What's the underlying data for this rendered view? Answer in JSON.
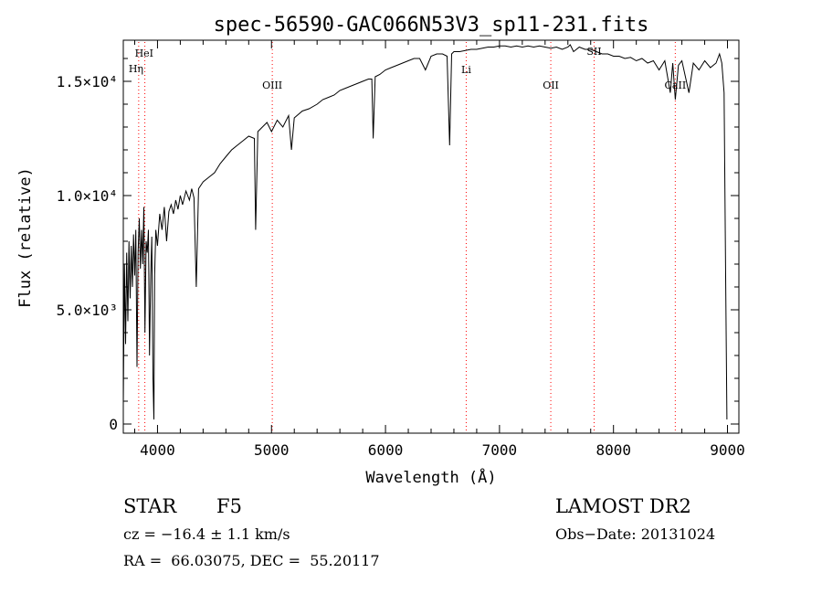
{
  "chart_data": {
    "type": "line",
    "title": "spec-56590-GAC066N53V3_sp11-231.fits",
    "xlabel": "Wavelength (Å)",
    "ylabel": "Flux (relative)",
    "xlim": [
      3700,
      9100
    ],
    "ylim": [
      -400,
      16800
    ],
    "xticks": [
      {
        "value": 4000,
        "label": "4000"
      },
      {
        "value": 5000,
        "label": "5000"
      },
      {
        "value": 6000,
        "label": "6000"
      },
      {
        "value": 7000,
        "label": "7000"
      },
      {
        "value": 8000,
        "label": "8000"
      },
      {
        "value": 9000,
        "label": "9000"
      }
    ],
    "yticks": [
      {
        "value": 0,
        "label": "0"
      },
      {
        "value": 5000,
        "label": "5.0×10³"
      },
      {
        "value": 10000,
        "label": "1.0×10⁴"
      },
      {
        "value": 15000,
        "label": "1.5×10⁴"
      }
    ],
    "grid": false,
    "line_color": "#000000",
    "marker_color": "#ff0000",
    "spectral_lines": [
      {
        "name": "HeI",
        "wavelength": 3889
      },
      {
        "name": "Hη",
        "wavelength": 3835
      },
      {
        "name": "OIII",
        "wavelength": 5007
      },
      {
        "name": "Li",
        "wavelength": 6708
      },
      {
        "name": "OII",
        "wavelength": 7450
      },
      {
        "name": "SII",
        "wavelength": 7830
      },
      {
        "name": "CaII",
        "wavelength": 8542
      }
    ],
    "series": [
      {
        "values": [
          [
            3700,
            800
          ],
          [
            3710,
            7000
          ],
          [
            3720,
            3500
          ],
          [
            3730,
            7500
          ],
          [
            3740,
            4500
          ],
          [
            3750,
            8000
          ],
          [
            3760,
            5500
          ],
          [
            3770,
            7800
          ],
          [
            3780,
            6000
          ],
          [
            3790,
            8300
          ],
          [
            3800,
            6500
          ],
          [
            3810,
            8500
          ],
          [
            3820,
            2500
          ],
          [
            3830,
            7500
          ],
          [
            3840,
            9000
          ],
          [
            3850,
            6800
          ],
          [
            3860,
            8500
          ],
          [
            3870,
            7000
          ],
          [
            3880,
            9500
          ],
          [
            3890,
            4000
          ],
          [
            3900,
            8000
          ],
          [
            3910,
            7500
          ],
          [
            3920,
            8500
          ],
          [
            3930,
            3000
          ],
          [
            3940,
            6500
          ],
          [
            3950,
            8200
          ],
          [
            3960,
            2000
          ],
          [
            3968,
            200
          ],
          [
            3975,
            6500
          ],
          [
            3985,
            8500
          ],
          [
            4000,
            7800
          ],
          [
            4020,
            9200
          ],
          [
            4040,
            8500
          ],
          [
            4060,
            9500
          ],
          [
            4080,
            8000
          ],
          [
            4100,
            9300
          ],
          [
            4120,
            9600
          ],
          [
            4140,
            9200
          ],
          [
            4160,
            9800
          ],
          [
            4180,
            9400
          ],
          [
            4200,
            10000
          ],
          [
            4220,
            9600
          ],
          [
            4250,
            10200
          ],
          [
            4280,
            9800
          ],
          [
            4300,
            10300
          ],
          [
            4320,
            9900
          ],
          [
            4340,
            6000
          ],
          [
            4360,
            10300
          ],
          [
            4400,
            10600
          ],
          [
            4450,
            10800
          ],
          [
            4500,
            11000
          ],
          [
            4550,
            11400
          ],
          [
            4600,
            11700
          ],
          [
            4650,
            12000
          ],
          [
            4700,
            12200
          ],
          [
            4750,
            12400
          ],
          [
            4800,
            12600
          ],
          [
            4850,
            12500
          ],
          [
            4861,
            8500
          ],
          [
            4880,
            12800
          ],
          [
            4920,
            13000
          ],
          [
            4960,
            13200
          ],
          [
            5000,
            12800
          ],
          [
            5050,
            13300
          ],
          [
            5100,
            13000
          ],
          [
            5150,
            13500
          ],
          [
            5175,
            12000
          ],
          [
            5200,
            13400
          ],
          [
            5270,
            13700
          ],
          [
            5330,
            13800
          ],
          [
            5400,
            14000
          ],
          [
            5450,
            14200
          ],
          [
            5500,
            14300
          ],
          [
            5550,
            14400
          ],
          [
            5600,
            14600
          ],
          [
            5650,
            14700
          ],
          [
            5700,
            14800
          ],
          [
            5750,
            14900
          ],
          [
            5800,
            15000
          ],
          [
            5850,
            15100
          ],
          [
            5880,
            15100
          ],
          [
            5892,
            12500
          ],
          [
            5910,
            15200
          ],
          [
            5950,
            15300
          ],
          [
            6000,
            15500
          ],
          [
            6050,
            15600
          ],
          [
            6100,
            15700
          ],
          [
            6150,
            15800
          ],
          [
            6200,
            15900
          ],
          [
            6250,
            16000
          ],
          [
            6300,
            16000
          ],
          [
            6350,
            15500
          ],
          [
            6400,
            16100
          ],
          [
            6450,
            16200
          ],
          [
            6500,
            16200
          ],
          [
            6540,
            16100
          ],
          [
            6563,
            12200
          ],
          [
            6580,
            16200
          ],
          [
            6600,
            16300
          ],
          [
            6650,
            16300
          ],
          [
            6700,
            16350
          ],
          [
            6750,
            16400
          ],
          [
            6800,
            16400
          ],
          [
            6850,
            16450
          ],
          [
            6900,
            16500
          ],
          [
            6950,
            16500
          ],
          [
            7000,
            16550
          ],
          [
            7050,
            16550
          ],
          [
            7100,
            16500
          ],
          [
            7150,
            16550
          ],
          [
            7200,
            16500
          ],
          [
            7250,
            16550
          ],
          [
            7300,
            16500
          ],
          [
            7350,
            16550
          ],
          [
            7400,
            16500
          ],
          [
            7450,
            16450
          ],
          [
            7500,
            16500
          ],
          [
            7550,
            16400
          ],
          [
            7600,
            16500
          ],
          [
            7620,
            16600
          ],
          [
            7650,
            16300
          ],
          [
            7700,
            16500
          ],
          [
            7750,
            16400
          ],
          [
            7800,
            16400
          ],
          [
            7850,
            16300
          ],
          [
            7900,
            16200
          ],
          [
            7950,
            16200
          ],
          [
            8000,
            16100
          ],
          [
            8050,
            16100
          ],
          [
            8100,
            16000
          ],
          [
            8150,
            16050
          ],
          [
            8200,
            15900
          ],
          [
            8250,
            16000
          ],
          [
            8300,
            15800
          ],
          [
            8350,
            15900
          ],
          [
            8400,
            15500
          ],
          [
            8450,
            15900
          ],
          [
            8498,
            14500
          ],
          [
            8520,
            15800
          ],
          [
            8542,
            14200
          ],
          [
            8570,
            15700
          ],
          [
            8600,
            15900
          ],
          [
            8662,
            14500
          ],
          [
            8700,
            15800
          ],
          [
            8750,
            15500
          ],
          [
            8800,
            15900
          ],
          [
            8850,
            15600
          ],
          [
            8900,
            15800
          ],
          [
            8930,
            16200
          ],
          [
            8950,
            15800
          ],
          [
            8970,
            14500
          ],
          [
            8985,
            6000
          ],
          [
            8995,
            200
          ]
        ]
      }
    ]
  },
  "footer": {
    "object_class": "STAR",
    "subclass": "F5",
    "release": "LAMOST DR2",
    "redshift": "cz = −16.4 ± 1.1 km/s",
    "obs_date": "Obs−Date: 20131024",
    "coords": "RA =  66.03075, DEC =  55.20117"
  }
}
